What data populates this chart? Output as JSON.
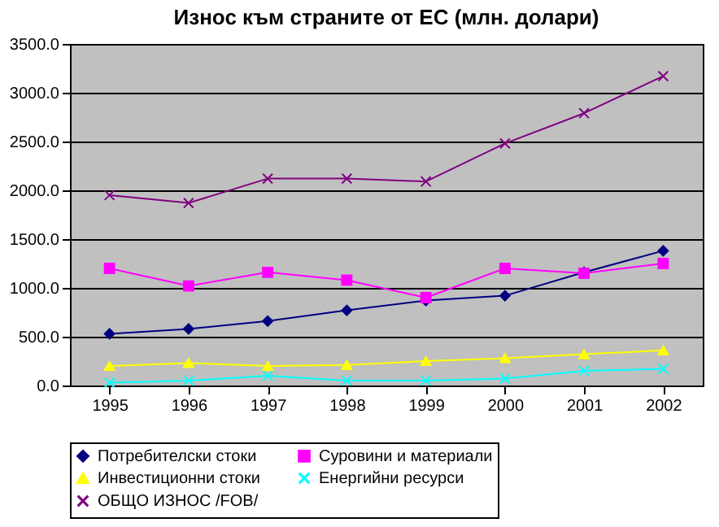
{
  "chart_data": {
    "type": "line",
    "title": "Износ към страните от ЕС (млн. долари)",
    "categories": [
      "1995",
      "1996",
      "1997",
      "1998",
      "1999",
      "2000",
      "2001",
      "2002"
    ],
    "series": [
      {
        "name": "Потребителски стоки",
        "color": "#000080",
        "marker": "diamond",
        "values": [
          530,
          580,
          660,
          770,
          870,
          920,
          1160,
          1380
        ]
      },
      {
        "name": "Суровини и материали",
        "color": "#ff00ff",
        "marker": "square",
        "values": [
          1200,
          1020,
          1160,
          1080,
          900,
          1200,
          1150,
          1250
        ]
      },
      {
        "name": "Инвестиционни стоки",
        "color": "#ffff00",
        "marker": "triangle",
        "values": [
          200,
          230,
          200,
          210,
          250,
          280,
          320,
          360
        ]
      },
      {
        "name": "Енергийни ресурси",
        "color": "#00ffff",
        "marker": "cross",
        "values": [
          30,
          50,
          100,
          50,
          50,
          70,
          150,
          170
        ]
      },
      {
        "name": "ОБЩО ИЗНОС /FOB/",
        "color": "#800080",
        "marker": "cross",
        "values": [
          1950,
          1870,
          2120,
          2120,
          2090,
          2480,
          2790,
          3170
        ]
      }
    ],
    "ylim": [
      0,
      3500
    ],
    "yticks": [
      {
        "value": 0,
        "label": "0.0"
      },
      {
        "value": 500,
        "label": "500.0"
      },
      {
        "value": 1000,
        "label": "1000.0"
      },
      {
        "value": 1500,
        "label": "1500.0"
      },
      {
        "value": 2000,
        "label": "2000.0"
      },
      {
        "value": 2500,
        "label": "2500.0"
      },
      {
        "value": 3000,
        "label": "3000.0"
      },
      {
        "value": 3500,
        "label": "3500.0"
      }
    ],
    "grid": "y",
    "legend": "bottom"
  }
}
